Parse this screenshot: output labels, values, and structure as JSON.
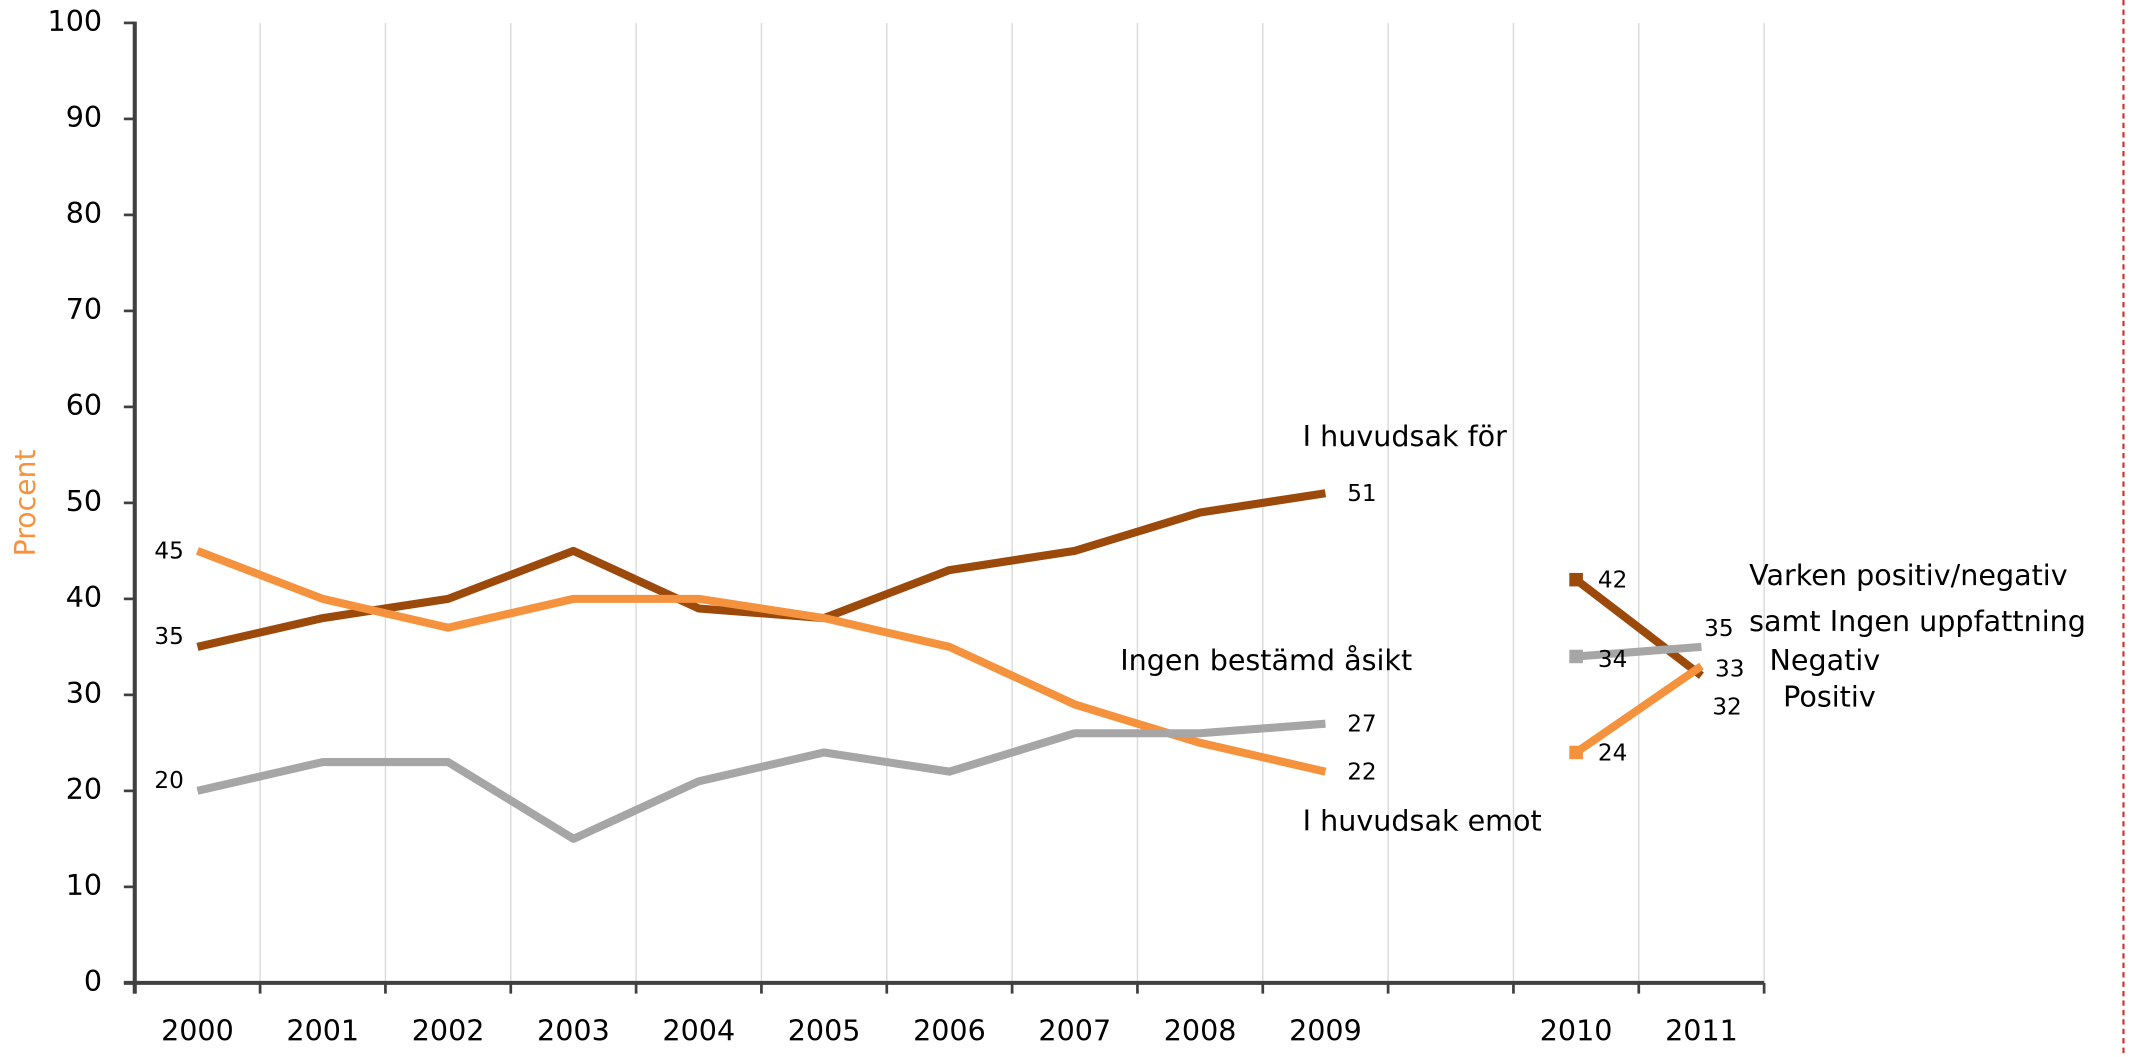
{
  "chart_data": {
    "type": "line",
    "y_label": "Procent",
    "categories": [
      "2000",
      "2001",
      "2002",
      "2003",
      "2004",
      "2005",
      "2006",
      "2007",
      "2008",
      "2009",
      null,
      "2010",
      "2011"
    ],
    "ylim": [
      0,
      100
    ],
    "yticks": [
      0,
      10,
      20,
      30,
      40,
      50,
      60,
      70,
      80,
      90,
      100
    ],
    "grid": true,
    "series": [
      {
        "name": "I huvudsak för",
        "color": "#9c4a0c",
        "values": [
          35,
          38,
          40,
          45,
          39,
          38,
          43,
          45,
          49,
          51,
          null,
          null,
          null
        ]
      },
      {
        "name": "I huvudsak emot",
        "color": "#f5923e",
        "values": [
          45,
          40,
          37,
          40,
          40,
          38,
          35,
          29,
          25,
          22,
          null,
          null,
          null
        ]
      },
      {
        "name": "Ingen bestämd åsikt",
        "color": "#a6a6a6",
        "values": [
          20,
          23,
          23,
          15,
          21,
          24,
          22,
          26,
          26,
          27,
          null,
          null,
          null
        ]
      },
      {
        "name": "Positiv",
        "color": "#9c4a0c",
        "marker": "square",
        "values": [
          null,
          null,
          null,
          null,
          null,
          null,
          null,
          null,
          null,
          null,
          null,
          42,
          32
        ]
      },
      {
        "name": "Negativ",
        "color": "#f5923e",
        "marker": "square",
        "values": [
          null,
          null,
          null,
          null,
          null,
          null,
          null,
          null,
          null,
          null,
          null,
          24,
          33
        ]
      },
      {
        "name": "Varken positiv/negativ samt Ingen uppfattning",
        "color": "#a6a6a6",
        "marker": "square",
        "values": [
          null,
          null,
          null,
          null,
          null,
          null,
          null,
          null,
          null,
          null,
          null,
          34,
          35
        ]
      }
    ]
  }
}
